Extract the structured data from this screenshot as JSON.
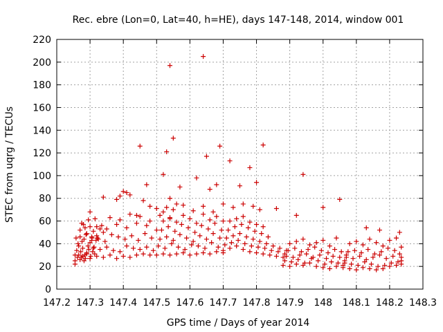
{
  "chart_data": {
    "type": "scatter",
    "title": "Rec. ebre (Lon=0, Lat=40, h=HE), days 147-148, 2014, window 001",
    "xlabel": "GPS time / Days of year 2014",
    "ylabel": "STEC from uqrg / TECUs",
    "xlim": [
      147.2,
      148.3
    ],
    "ylim": [
      0,
      220
    ],
    "xticks": [
      147.2,
      147.3,
      147.4,
      147.5,
      147.6,
      147.7,
      147.8,
      147.9,
      148.0,
      148.1,
      148.2,
      148.3
    ],
    "xtick_labels": [
      "147.2",
      "147.3",
      "147.4",
      "147.5",
      "147.6",
      "147.7",
      "147.8",
      "147.9",
      "148",
      "148.1",
      "148.2",
      "148.3"
    ],
    "yticks": [
      0,
      20,
      40,
      60,
      80,
      100,
      120,
      140,
      160,
      180,
      200,
      220
    ],
    "ytick_labels": [
      "0",
      "20",
      "40",
      "60",
      "80",
      "100",
      "120",
      "140",
      "160",
      "180",
      "200",
      "220"
    ],
    "grid": true,
    "marker": "+",
    "color": "#cc0000",
    "x": [
      147.255,
      147.255,
      147.255,
      147.258,
      147.262,
      147.266,
      147.27,
      147.274,
      147.278,
      147.282,
      147.286,
      147.29,
      147.26,
      147.266,
      147.272,
      147.278,
      147.284,
      147.29,
      147.296,
      147.302,
      147.308,
      147.314,
      147.264,
      147.27,
      147.276,
      147.282,
      147.288,
      147.294,
      147.3,
      147.306,
      147.312,
      147.318,
      147.27,
      147.28,
      147.29,
      147.3,
      147.31,
      147.32,
      147.33,
      147.34,
      147.275,
      147.285,
      147.295,
      147.305,
      147.315,
      147.325,
      147.335,
      147.3,
      147.32,
      147.34,
      147.36,
      147.38,
      147.4,
      147.42,
      147.44,
      147.46,
      147.48,
      147.31,
      147.33,
      147.35,
      147.37,
      147.39,
      147.41,
      147.43,
      147.45,
      147.47,
      147.49,
      147.305,
      147.322,
      147.345,
      147.365,
      147.385,
      147.405,
      147.425,
      147.445,
      147.465,
      147.485,
      147.32,
      147.35,
      147.38,
      147.41,
      147.44,
      147.47,
      147.5,
      147.36,
      147.39,
      147.42,
      147.45,
      147.48,
      147.51,
      147.54,
      147.38,
      147.4,
      147.42,
      147.44,
      147.46,
      147.48,
      147.5,
      147.52,
      147.54,
      147.56,
      147.5,
      147.52,
      147.54,
      147.56,
      147.58,
      147.6,
      147.62,
      147.64,
      147.66,
      147.68,
      147.7,
      147.505,
      147.525,
      147.545,
      147.565,
      147.585,
      147.605,
      147.625,
      147.645,
      147.665,
      147.685,
      147.51,
      147.53,
      147.55,
      147.57,
      147.59,
      147.61,
      147.63,
      147.65,
      147.67,
      147.69,
      147.515,
      147.535,
      147.555,
      147.575,
      147.595,
      147.615,
      147.635,
      147.655,
      147.675,
      147.695,
      147.52,
      147.54,
      147.56,
      147.58,
      147.6,
      147.62,
      147.64,
      147.66,
      147.68,
      147.7,
      147.53,
      147.55,
      147.58,
      147.61,
      147.64,
      147.67,
      147.7,
      147.7,
      147.72,
      147.74,
      147.76,
      147.78,
      147.8,
      147.82,
      147.84,
      147.86,
      147.88,
      147.705,
      147.725,
      147.745,
      147.765,
      147.785,
      147.805,
      147.825,
      147.845,
      147.865,
      147.885,
      147.71,
      147.73,
      147.75,
      147.77,
      147.79,
      147.81,
      147.83,
      147.85,
      147.87,
      147.89,
      147.715,
      147.735,
      147.755,
      147.775,
      147.795,
      147.815,
      147.835,
      147.72,
      147.74,
      147.76,
      147.78,
      147.8,
      147.82,
      147.73,
      147.76,
      147.79,
      147.81,
      147.88,
      147.9,
      147.92,
      147.94,
      147.96,
      147.98,
      148.0,
      148.02,
      148.04,
      148.06,
      147.885,
      147.905,
      147.925,
      147.945,
      147.965,
      147.985,
      148.005,
      148.025,
      148.045,
      148.065,
      147.89,
      147.91,
      147.93,
      147.95,
      147.97,
      147.99,
      148.01,
      148.03,
      148.05,
      148.07,
      147.895,
      147.915,
      147.935,
      147.955,
      147.975,
      147.995,
      148.015,
      148.035,
      148.055,
      147.9,
      147.92,
      147.94,
      147.96,
      147.98,
      148.0,
      148.02,
      148.04,
      148.06,
      148.08,
      148.1,
      148.12,
      148.14,
      148.16,
      148.18,
      148.2,
      148.22,
      148.235,
      148.065,
      148.085,
      148.105,
      148.125,
      148.145,
      148.165,
      148.185,
      148.205,
      148.225,
      148.235,
      148.07,
      148.09,
      148.11,
      148.13,
      148.15,
      148.17,
      148.19,
      148.21,
      148.23,
      148.235,
      148.075,
      148.095,
      148.115,
      148.135,
      148.155,
      148.175,
      148.195,
      148.215,
      148.235,
      148.08,
      148.1,
      148.12,
      148.14,
      148.16,
      148.18,
      148.2,
      148.22,
      147.54,
      147.64,
      147.53,
      147.55,
      147.65,
      147.69,
      147.82,
      147.45,
      147.72,
      147.78,
      147.52,
      147.47,
      147.41,
      147.39,
      147.62,
      147.68,
      147.75,
      147.8,
      147.94,
      148.05,
      148.0,
      147.3,
      147.34,
      147.57,
      147.66,
      147.86,
      147.92,
      148.13,
      148.17,
      148.23
    ],
    "y": [
      22,
      25,
      30,
      45,
      28,
      30,
      26,
      28,
      29,
      25,
      27,
      32,
      34,
      38,
      33,
      36,
      30,
      31,
      35,
      29,
      33,
      31,
      40,
      46,
      42,
      44,
      48,
      38,
      41,
      45,
      37,
      43,
      52,
      57,
      49,
      55,
      51,
      47,
      53,
      50,
      58,
      54,
      61,
      46,
      62,
      44,
      56,
      27,
      29,
      28,
      30,
      27,
      29,
      28,
      30,
      31,
      30,
      36,
      35,
      37,
      34,
      33,
      38,
      36,
      35,
      37,
      34,
      43,
      45,
      42,
      48,
      46,
      44,
      47,
      43,
      49,
      45,
      55,
      53,
      57,
      54,
      58,
      56,
      52,
      63,
      61,
      66,
      64,
      60,
      65,
      62,
      79,
      86,
      83,
      65,
      78,
      73,
      71,
      68,
      80,
      75,
      30,
      31,
      30,
      31,
      32,
      30,
      31,
      32,
      31,
      33,
      32,
      38,
      36,
      40,
      37,
      35,
      39,
      38,
      36,
      41,
      37,
      44,
      46,
      43,
      48,
      45,
      42,
      47,
      44,
      49,
      45,
      52,
      55,
      51,
      57,
      54,
      50,
      56,
      53,
      58,
      52,
      60,
      63,
      59,
      65,
      62,
      58,
      66,
      61,
      64,
      60,
      72,
      70,
      74,
      69,
      73,
      68,
      75,
      34,
      36,
      38,
      35,
      33,
      32,
      31,
      30,
      29,
      28,
      39,
      41,
      43,
      40,
      38,
      37,
      36,
      34,
      33,
      31,
      45,
      47,
      49,
      46,
      44,
      42,
      40,
      38,
      36,
      34,
      52,
      55,
      57,
      54,
      51,
      49,
      46,
      60,
      62,
      64,
      59,
      57,
      55,
      72,
      75,
      73,
      70,
      21,
      20,
      22,
      21,
      23,
      20,
      19,
      18,
      20,
      21,
      25,
      24,
      26,
      23,
      27,
      25,
      22,
      24,
      23,
      25,
      29,
      28,
      30,
      31,
      28,
      30,
      27,
      29,
      28,
      30,
      34,
      36,
      33,
      35,
      37,
      34,
      32,
      35,
      33,
      40,
      42,
      44,
      39,
      41,
      43,
      38,
      45,
      19,
      18,
      17,
      19,
      18,
      17,
      18,
      20,
      21,
      22,
      23,
      22,
      21,
      24,
      22,
      20,
      21,
      23,
      24,
      25,
      28,
      27,
      29,
      26,
      28,
      30,
      27,
      29,
      31,
      28,
      33,
      34,
      32,
      35,
      31,
      33,
      36,
      34,
      37,
      40,
      42,
      39,
      44,
      41,
      38,
      43,
      45,
      197,
      205,
      121,
      133,
      117,
      126,
      127,
      126,
      113,
      107,
      101,
      92,
      85,
      82,
      98,
      92,
      91,
      94,
      101,
      79,
      72,
      68,
      81,
      90,
      88,
      71,
      65,
      54,
      52,
      50
    ]
  }
}
